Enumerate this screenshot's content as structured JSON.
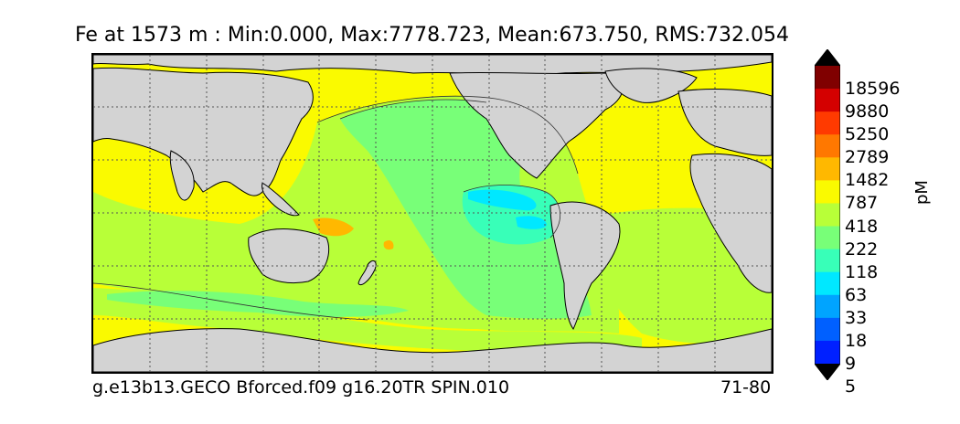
{
  "title": "Fe at 1573 m : Min:0.000, Max:7778.723, Mean:673.750, RMS:732.054",
  "footer": {
    "run_id": "g.e13b13.GECO Bforced.f09 g16.20TR SPIN.010",
    "years": "71-80"
  },
  "colorbar": {
    "unit": "pM",
    "levels": [
      "18596",
      "9880",
      "5250",
      "2789",
      "1482",
      "787",
      "418",
      "222",
      "118",
      "63",
      "33",
      "18",
      "9",
      "5"
    ],
    "colors": [
      "#800000",
      "#d40000",
      "#ff3a00",
      "#ff7800",
      "#ffb800",
      "#fafa00",
      "#b8ff38",
      "#78ff78",
      "#38ffb8",
      "#00e8ff",
      "#00a4ff",
      "#0060ff",
      "#0020ff",
      "#0000d4",
      "#000080"
    ]
  },
  "map": {
    "projection": "global lat-lon, ocean field with gray land mask",
    "land_color": "#d3d3d3",
    "grid": "dotted",
    "ocean_background_color": "#fafa00"
  }
}
